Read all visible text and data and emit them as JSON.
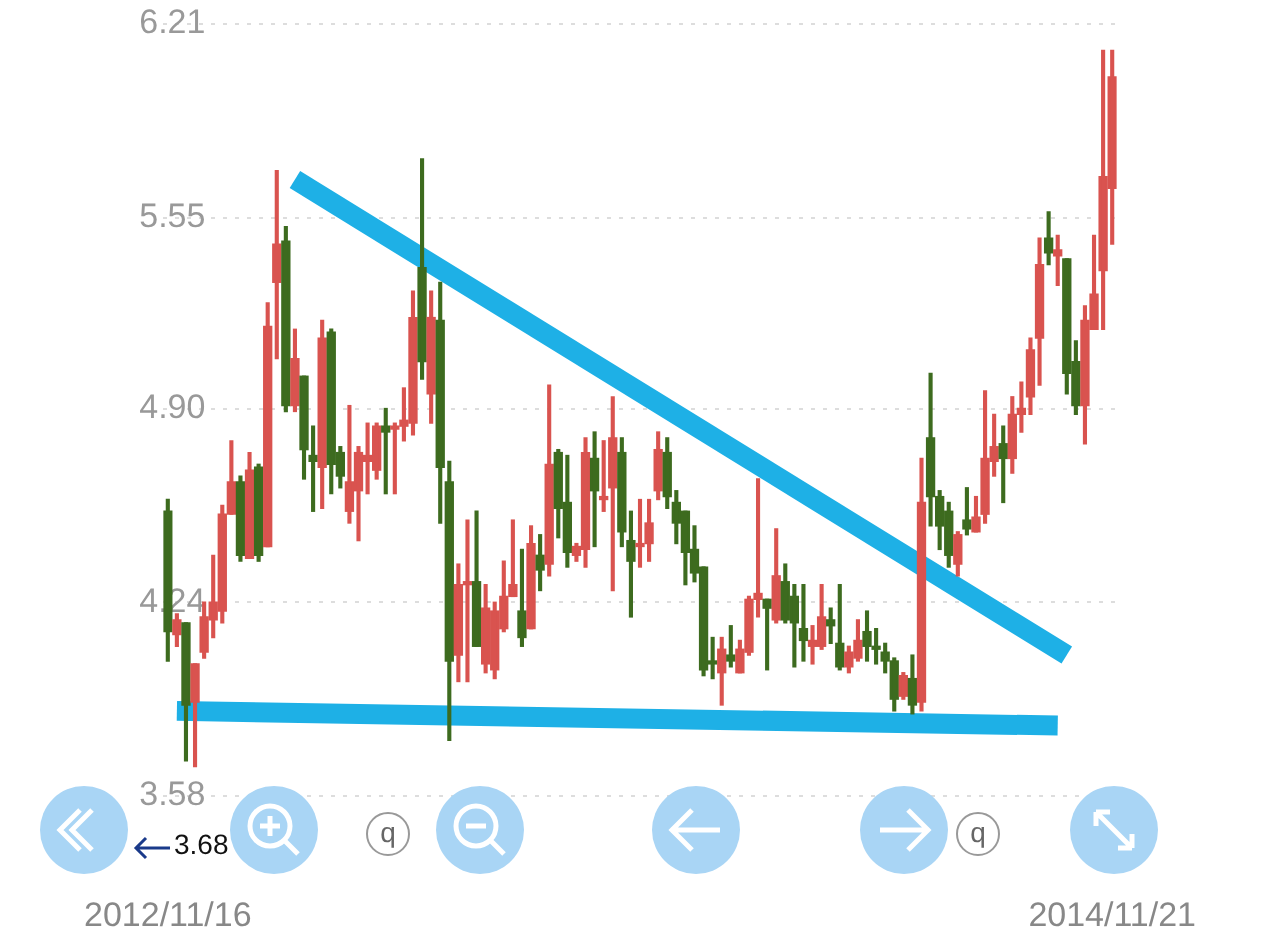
{
  "chart_data": {
    "type": "candlestick",
    "categories": [
      "2012/11/16",
      null,
      null,
      null,
      null,
      null,
      null,
      null,
      null,
      null,
      null,
      null,
      null,
      null,
      null,
      null,
      null,
      null,
      null,
      null,
      null,
      null,
      null,
      null,
      null,
      null,
      null,
      null,
      null,
      null,
      null,
      null,
      null,
      null,
      null,
      null,
      null,
      null,
      null,
      null,
      null,
      null,
      null,
      null,
      null,
      null,
      null,
      null,
      null,
      null,
      null,
      null,
      null,
      null,
      null,
      null,
      null,
      null,
      null,
      null,
      null,
      null,
      null,
      null,
      null,
      null,
      null,
      null,
      null,
      null,
      null,
      null,
      null,
      null,
      null,
      null,
      null,
      null,
      null,
      null,
      null,
      null,
      null,
      null,
      null,
      null,
      null,
      null,
      null,
      null,
      null,
      null,
      null,
      null,
      null,
      null,
      null,
      null,
      null,
      null,
      null,
      null,
      null,
      null,
      "2014/11/21"
    ],
    "ohlc": [
      [
        4.55,
        4.59,
        4.04,
        4.14
      ],
      [
        4.13,
        4.2,
        4.09,
        4.18
      ],
      [
        4.17,
        4.17,
        3.7,
        3.89
      ],
      [
        3.9,
        4.03,
        3.68,
        4.03
      ],
      [
        4.07,
        4.24,
        4.05,
        4.19
      ],
      [
        4.18,
        4.4,
        4.12,
        4.24
      ],
      [
        4.21,
        4.57,
        4.17,
        4.54
      ],
      [
        4.54,
        4.79,
        4.54,
        4.65
      ],
      [
        4.65,
        4.67,
        4.38,
        4.4
      ],
      [
        4.39,
        4.75,
        4.39,
        4.69
      ],
      [
        4.7,
        4.71,
        4.38,
        4.4
      ],
      [
        4.43,
        5.26,
        4.43,
        5.18
      ],
      [
        5.33,
        5.71,
        5.07,
        5.46
      ],
      [
        5.47,
        5.52,
        4.89,
        4.91
      ],
      [
        4.91,
        5.17,
        4.89,
        5.07
      ],
      [
        5.01,
        5.01,
        4.66,
        4.76
      ],
      [
        4.74,
        4.84,
        4.55,
        4.72
      ],
      [
        4.7,
        5.2,
        4.56,
        5.14
      ],
      [
        5.16,
        5.17,
        4.61,
        4.71
      ],
      [
        4.75,
        4.77,
        4.63,
        4.67
      ],
      [
        4.55,
        4.91,
        4.51,
        4.65
      ],
      [
        4.62,
        4.77,
        4.45,
        4.75
      ],
      [
        4.72,
        4.85,
        4.61,
        4.74
      ],
      [
        4.69,
        4.85,
        4.66,
        4.84
      ],
      [
        4.84,
        4.9,
        4.61,
        4.82
      ],
      [
        4.83,
        4.85,
        4.61,
        4.84
      ],
      [
        4.84,
        4.97,
        4.79,
        4.86
      ],
      [
        4.85,
        5.3,
        4.81,
        5.21
      ],
      [
        5.38,
        5.75,
        5.0,
        5.06
      ],
      [
        4.95,
        5.3,
        4.85,
        5.21
      ],
      [
        5.2,
        5.33,
        4.51,
        4.7
      ],
      [
        4.65,
        4.72,
        3.77,
        4.04
      ],
      [
        4.06,
        4.37,
        3.97,
        4.3
      ],
      [
        4.3,
        4.52,
        3.97,
        4.31
      ],
      [
        4.31,
        4.55,
        4.09,
        4.09
      ],
      [
        4.03,
        4.3,
        4.0,
        4.22
      ],
      [
        4.01,
        4.24,
        3.98,
        4.21
      ],
      [
        4.15,
        4.38,
        4.14,
        4.26
      ],
      [
        4.26,
        4.52,
        4.26,
        4.3
      ],
      [
        4.21,
        4.42,
        4.09,
        4.12
      ],
      [
        4.15,
        4.5,
        4.15,
        4.44
      ],
      [
        4.4,
        4.47,
        4.28,
        4.35
      ],
      [
        4.37,
        4.98,
        4.33,
        4.71
      ],
      [
        4.75,
        4.76,
        4.46,
        4.56
      ],
      [
        4.58,
        4.74,
        4.36,
        4.41
      ],
      [
        4.4,
        4.44,
        4.38,
        4.43
      ],
      [
        4.42,
        4.8,
        4.36,
        4.75
      ],
      [
        4.73,
        4.82,
        4.43,
        4.62
      ],
      [
        4.59,
        4.79,
        4.55,
        4.6
      ],
      [
        4.63,
        4.94,
        4.28,
        4.8
      ],
      [
        4.75,
        4.8,
        4.43,
        4.48
      ],
      [
        4.45,
        4.55,
        4.19,
        4.38
      ],
      [
        4.43,
        4.59,
        4.36,
        4.44
      ],
      [
        4.44,
        4.59,
        4.38,
        4.51
      ],
      [
        4.62,
        4.82,
        4.59,
        4.76
      ],
      [
        4.75,
        4.8,
        4.56,
        4.6
      ],
      [
        4.58,
        4.62,
        4.44,
        4.51
      ],
      [
        4.55,
        4.55,
        4.3,
        4.41
      ],
      [
        4.42,
        4.5,
        4.31,
        4.34
      ],
      [
        4.36,
        4.36,
        3.99,
        4.01
      ],
      [
        4.04,
        4.12,
        3.98,
        4.03
      ],
      [
        4.0,
        4.12,
        3.89,
        4.08
      ],
      [
        4.06,
        4.16,
        4.02,
        4.04
      ],
      [
        4.0,
        4.11,
        4.0,
        4.08
      ],
      [
        4.07,
        4.26,
        4.06,
        4.25
      ],
      [
        4.25,
        4.66,
        4.19,
        4.27
      ],
      [
        4.25,
        4.25,
        4.01,
        4.22
      ],
      [
        4.18,
        4.49,
        4.17,
        4.33
      ],
      [
        4.31,
        4.37,
        4.17,
        4.18
      ],
      [
        4.26,
        4.3,
        4.02,
        4.17
      ],
      [
        4.15,
        4.3,
        4.04,
        4.11
      ],
      [
        4.09,
        4.16,
        4.03,
        4.11
      ],
      [
        4.09,
        4.3,
        4.08,
        4.19
      ],
      [
        4.18,
        4.22,
        4.1,
        4.16
      ],
      [
        4.1,
        4.3,
        4.01,
        4.02
      ],
      [
        4.02,
        4.09,
        4.0,
        4.07
      ],
      [
        4.05,
        4.18,
        4.04,
        4.11
      ],
      [
        4.14,
        4.21,
        4.04,
        4.09
      ],
      [
        4.09,
        4.15,
        4.03,
        4.08
      ],
      [
        4.07,
        4.1,
        4.0,
        4.04
      ],
      [
        4.04,
        4.05,
        3.87,
        3.91
      ],
      [
        3.92,
        4.0,
        3.91,
        3.99
      ],
      [
        3.98,
        4.06,
        3.86,
        3.89
      ],
      [
        3.9,
        4.73,
        3.87,
        4.58
      ],
      [
        4.8,
        5.02,
        4.5,
        4.6
      ],
      [
        4.6,
        4.62,
        4.42,
        4.5
      ],
      [
        4.55,
        4.58,
        4.36,
        4.4
      ],
      [
        4.37,
        4.48,
        4.33,
        4.47
      ],
      [
        4.52,
        4.63,
        4.47,
        4.49
      ],
      [
        4.48,
        4.6,
        4.48,
        4.53
      ],
      [
        4.54,
        4.96,
        4.51,
        4.73
      ],
      [
        4.72,
        4.88,
        4.67,
        4.77
      ],
      [
        4.78,
        4.84,
        4.58,
        4.73
      ],
      [
        4.73,
        4.94,
        4.68,
        4.88
      ],
      [
        4.88,
        4.99,
        4.82,
        4.9
      ],
      [
        4.94,
        5.14,
        4.88,
        5.1
      ],
      [
        5.14,
        5.48,
        4.98,
        5.39
      ],
      [
        5.48,
        5.57,
        5.39,
        5.43
      ],
      [
        5.42,
        5.49,
        5.32,
        5.44
      ],
      [
        5.41,
        5.41,
        4.95,
        5.02
      ],
      [
        5.06,
        5.13,
        4.88,
        4.91
      ],
      [
        4.91,
        5.25,
        4.78,
        5.2
      ],
      [
        5.17,
        5.49,
        5.17,
        5.29
      ],
      [
        5.37,
        6.12,
        5.17,
        5.69
      ],
      [
        5.65,
        6.12,
        5.46,
        6.03
      ]
    ],
    "colors": [
      "#3d6b1f",
      "#d9534f",
      "#3d6b1f",
      "#d9534f",
      "#d9534f",
      "#d9534f",
      "#d9534f",
      "#d9534f",
      "#3d6b1f",
      "#d9534f",
      "#3d6b1f",
      "#d9534f",
      "#d9534f",
      "#3d6b1f",
      "#d9534f",
      "#3d6b1f",
      "#3d6b1f",
      "#d9534f",
      "#3d6b1f",
      "#3d6b1f",
      "#d9534f",
      "#d9534f",
      "#d9534f",
      "#d9534f",
      "#3d6b1f",
      "#d9534f",
      "#d9534f",
      "#d9534f",
      "#3d6b1f",
      "#d9534f",
      "#3d6b1f",
      "#3d6b1f",
      "#d9534f",
      "#d9534f",
      "#3d6b1f",
      "#d9534f",
      "#d9534f",
      "#d9534f",
      "#d9534f",
      "#3d6b1f",
      "#d9534f",
      "#3d6b1f",
      "#d9534f",
      "#3d6b1f",
      "#3d6b1f",
      "#d9534f",
      "#d9534f",
      "#3d6b1f",
      "#d9534f",
      "#d9534f",
      "#3d6b1f",
      "#3d6b1f",
      "#d9534f",
      "#d9534f",
      "#d9534f",
      "#3d6b1f",
      "#3d6b1f",
      "#3d6b1f",
      "#3d6b1f",
      "#3d6b1f",
      "#3d6b1f",
      "#d9534f",
      "#3d6b1f",
      "#d9534f",
      "#d9534f",
      "#d9534f",
      "#3d6b1f",
      "#d9534f",
      "#3d6b1f",
      "#3d6b1f",
      "#3d6b1f",
      "#d9534f",
      "#d9534f",
      "#3d6b1f",
      "#3d6b1f",
      "#d9534f",
      "#d9534f",
      "#3d6b1f",
      "#3d6b1f",
      "#3d6b1f",
      "#3d6b1f",
      "#d9534f",
      "#3d6b1f",
      "#d9534f",
      "#3d6b1f",
      "#3d6b1f",
      "#3d6b1f",
      "#d9534f",
      "#3d6b1f",
      "#d9534f",
      "#d9534f",
      "#d9534f",
      "#3d6b1f",
      "#d9534f",
      "#d9534f",
      "#d9534f",
      "#d9534f",
      "#3d6b1f",
      "#d9534f",
      "#3d6b1f",
      "#3d6b1f",
      "#d9534f",
      "#d9534f",
      "#d9534f",
      "#d9534f"
    ],
    "series": [
      {
        "type": "line",
        "color": "#1eb0e6",
        "values": [
          null,
          null,
          null,
          null,
          null,
          null,
          null,
          null,
          null,
          null,
          null,
          null,
          null,
          null,
          5.68,
          null,
          null,
          null,
          null,
          null,
          null,
          null,
          null,
          null,
          null,
          null,
          null,
          null,
          null,
          null,
          null,
          null,
          null,
          null,
          null,
          null,
          null,
          null,
          null,
          null,
          null,
          null,
          null,
          null,
          null,
          null,
          null,
          null,
          null,
          null,
          null,
          null,
          null,
          null,
          null,
          null,
          null,
          null,
          null,
          null,
          null,
          null,
          null,
          null,
          null,
          null,
          null,
          null,
          null,
          null,
          null,
          null,
          null,
          null,
          null,
          null,
          null,
          null,
          null,
          null,
          null,
          null,
          null,
          null,
          null,
          null,
          null,
          null,
          null,
          null,
          null,
          null,
          null,
          null,
          null,
          null,
          null,
          null,
          null,
          4.06,
          null,
          null,
          null,
          null,
          null
        ]
      },
      {
        "type": "line",
        "color": "#1eb0e6",
        "values": [
          null,
          3.87,
          null,
          null,
          null,
          null,
          null,
          null,
          null,
          null,
          null,
          null,
          null,
          null,
          null,
          null,
          null,
          null,
          null,
          null,
          null,
          null,
          null,
          null,
          null,
          null,
          null,
          null,
          null,
          null,
          null,
          null,
          null,
          null,
          null,
          null,
          null,
          null,
          null,
          null,
          null,
          null,
          null,
          null,
          null,
          null,
          null,
          null,
          null,
          null,
          null,
          null,
          null,
          null,
          null,
          null,
          null,
          null,
          null,
          null,
          null,
          null,
          null,
          null,
          null,
          null,
          null,
          null,
          null,
          null,
          null,
          null,
          null,
          null,
          null,
          null,
          null,
          null,
          null,
          null,
          null,
          null,
          null,
          null,
          null,
          null,
          null,
          null,
          null,
          null,
          null,
          null,
          null,
          null,
          null,
          null,
          null,
          null,
          3.82,
          null,
          null,
          null,
          null,
          null,
          null
        ]
      }
    ],
    "ylim": [
      3.58,
      6.21
    ],
    "yticks": [
      3.58,
      4.24,
      {
        "value": 4.9,
        "label": "4.90"
      },
      5.55,
      6.21
    ],
    "grid": "y",
    "legend": false,
    "annotations": [
      "q",
      "q",
      "3.68"
    ]
  }
}
